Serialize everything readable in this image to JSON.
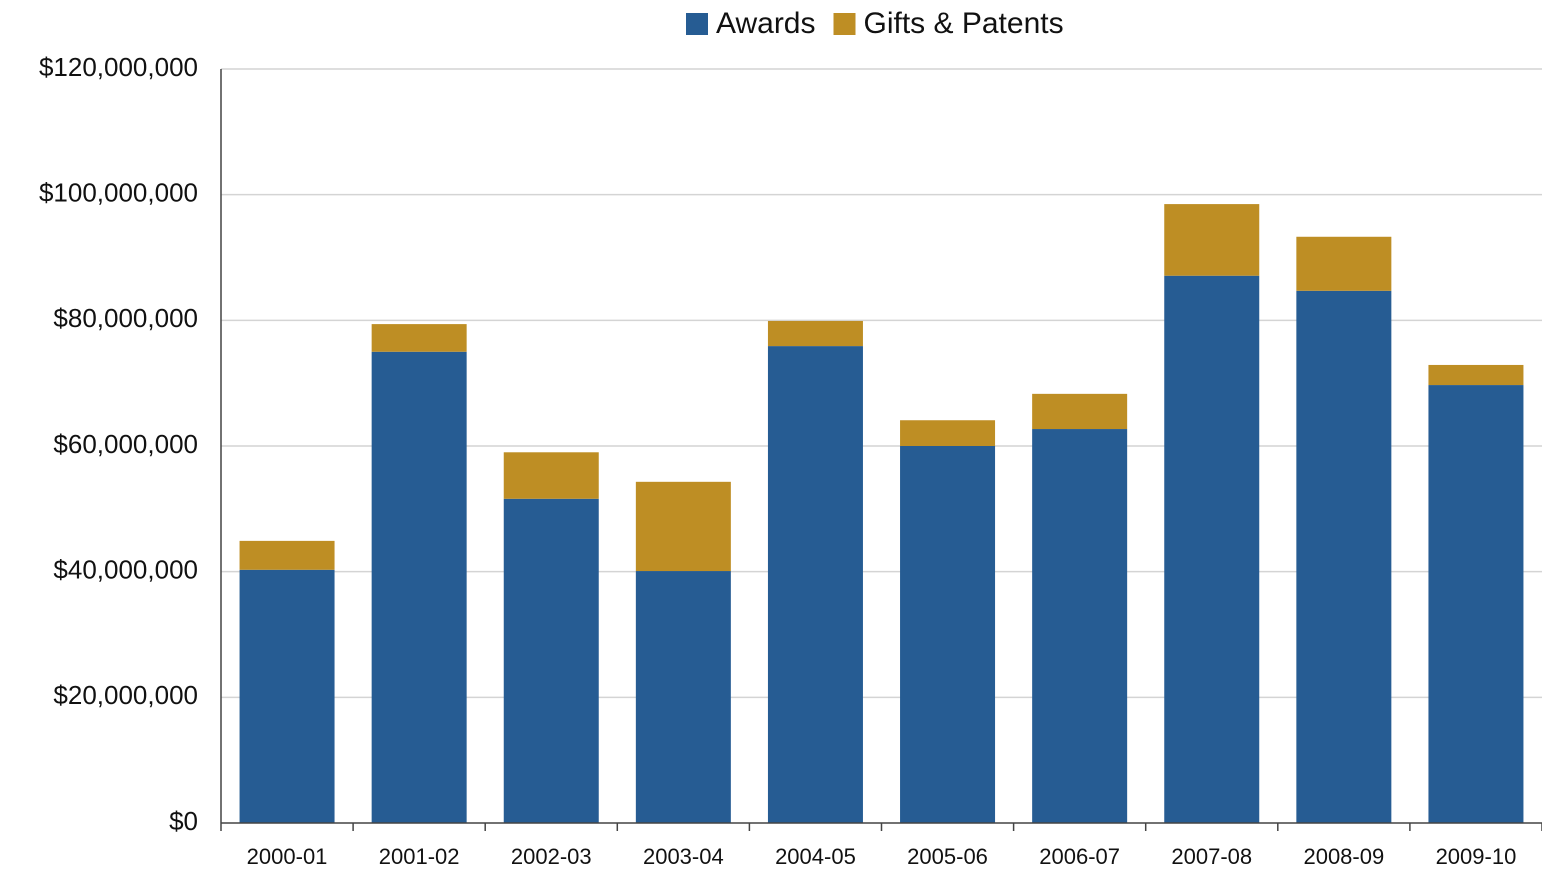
{
  "chart_data": {
    "type": "stacked_bar",
    "categories": [
      "2000-01",
      "2001-02",
      "2002-03",
      "2003-04",
      "2004-05",
      "2005-06",
      "2006-07",
      "2007-08",
      "2008-09",
      "2009-10"
    ],
    "series": [
      {
        "name": "Awards",
        "color": "#265c93",
        "values": [
          40300000,
          75000000,
          51600000,
          40100000,
          75900000,
          60000000,
          62700000,
          87100000,
          84700000,
          69700000
        ]
      },
      {
        "name": "Gifts & Patents",
        "color": "#be8e24",
        "values": [
          4600000,
          4400000,
          7400000,
          14200000,
          4000000,
          4100000,
          5600000,
          11400000,
          8600000,
          3200000
        ]
      }
    ],
    "ylim": [
      0,
      120000000
    ],
    "yticks": [
      {
        "value": 0,
        "label": "$0"
      },
      {
        "value": 20000000,
        "label": "$20,000,000"
      },
      {
        "value": 40000000,
        "label": "$40,000,000"
      },
      {
        "value": 60000000,
        "label": "$60,000,000"
      },
      {
        "value": 80000000,
        "label": "$80,000,000"
      },
      {
        "value": 100000000,
        "label": "$100,000,000"
      },
      {
        "value": 120000000,
        "label": "$120,000,000"
      }
    ],
    "grid": true,
    "legend": "top"
  }
}
